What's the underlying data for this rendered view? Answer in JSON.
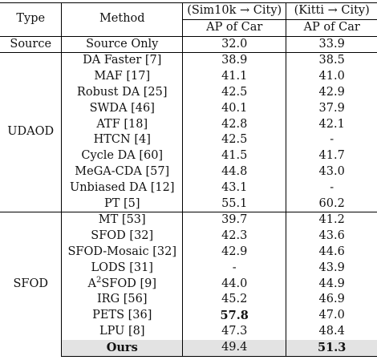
{
  "table": {
    "headers": {
      "type": "Type",
      "method": "Method",
      "sim": "(Sim10k → City)",
      "kitti": "(Kitti → City)",
      "sim_sub": "AP of Car",
      "kitti_sub": "AP of Car"
    },
    "groups": {
      "source": "Source",
      "udaod": "UDAOD",
      "sfod": "SFOD"
    },
    "rows": [
      {
        "method": "Source Only",
        "sim": "32.0",
        "kitti": "33.9"
      },
      {
        "method": "DA Faster [7]",
        "sim": "38.9",
        "kitti": "38.5"
      },
      {
        "method": "MAF [17]",
        "sim": "41.1",
        "kitti": "41.0"
      },
      {
        "method": "Robust DA [25]",
        "sim": "42.5",
        "kitti": "42.9"
      },
      {
        "method": "SWDA [46]",
        "sim": "40.1",
        "kitti": "37.9"
      },
      {
        "method": "ATF [18]",
        "sim": "42.8",
        "kitti": "42.1"
      },
      {
        "method": "HTCN [4]",
        "sim": "42.5",
        "kitti": "-"
      },
      {
        "method": "Cycle DA [60]",
        "sim": "41.5",
        "kitti": "41.7"
      },
      {
        "method": "MeGA-CDA [57]",
        "sim": "44.8",
        "kitti": "43.0"
      },
      {
        "method": "Unbiased DA [12]",
        "sim": "43.1",
        "kitti": "-"
      },
      {
        "method": "PT [5]",
        "sim": "55.1",
        "kitti": "60.2"
      },
      {
        "method": "MT [53]",
        "sim": "39.7",
        "kitti": "41.2"
      },
      {
        "method": "SFOD [32]",
        "sim": "42.3",
        "kitti": "43.6"
      },
      {
        "method": "SFOD-Mosaic [32]",
        "sim": "42.9",
        "kitti": "44.6"
      },
      {
        "method": "LODS [31]",
        "sim": "-",
        "kitti": "43.9"
      },
      {
        "method_base": "A",
        "method_sup": "2",
        "method_rest": "SFOD [9]",
        "sim": "44.0",
        "kitti": "44.9"
      },
      {
        "method": "IRG [56]",
        "sim": "45.2",
        "kitti": "46.9"
      },
      {
        "method": "PETS [36]",
        "sim": "57.8",
        "kitti": "47.0"
      },
      {
        "method": "LPU [8]",
        "sim": "47.3",
        "kitti": "48.4"
      },
      {
        "method": "Ours",
        "sim": "49.4",
        "kitti": "51.3"
      }
    ]
  }
}
